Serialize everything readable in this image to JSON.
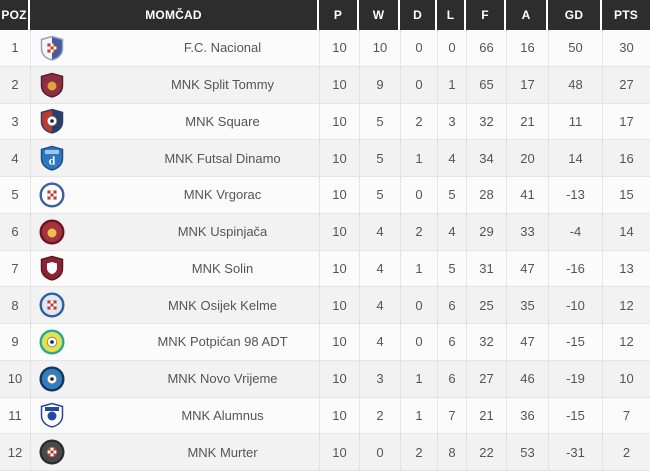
{
  "app": {
    "title": "Futsal league standings table"
  },
  "colors": {
    "header_bg": "#2d2d2d",
    "header_text": "#ffffff",
    "row_odd_bg": "#fbfbfb",
    "row_even_bg": "#f2f2f2",
    "row_border": "#e5e5e5",
    "column_divider": "#d4d4d4",
    "body_text": "#555555"
  },
  "table": {
    "columns": [
      {
        "key": "pos",
        "label": "POZ"
      },
      {
        "key": "team",
        "label": "MOMČAD"
      },
      {
        "key": "p",
        "label": "P"
      },
      {
        "key": "w",
        "label": "W"
      },
      {
        "key": "d",
        "label": "D"
      },
      {
        "key": "l",
        "label": "L"
      },
      {
        "key": "f",
        "label": "F"
      },
      {
        "key": "a",
        "label": "A"
      },
      {
        "key": "gd",
        "label": "GD"
      },
      {
        "key": "pts",
        "label": "PTS"
      }
    ],
    "rows": [
      {
        "pos": 1,
        "team": "F.C. Nacional",
        "p": 10,
        "w": 10,
        "d": 0,
        "l": 0,
        "f": 66,
        "a": 16,
        "gd": 50,
        "pts": 30,
        "logo": {
          "icon": "fc-nacional-crest",
          "shape": "shield",
          "bg": "#f4f6fa",
          "border": "#93a2b8",
          "secondary": "#3b5ea6",
          "motif": {
            "type": "checker",
            "color": "#c0392b"
          }
        }
      },
      {
        "pos": 2,
        "team": "MNK Split Tommy",
        "p": 10,
        "w": 9,
        "d": 0,
        "l": 1,
        "f": 65,
        "a": 17,
        "gd": 48,
        "pts": 27,
        "logo": {
          "icon": "split-tommy-crest",
          "shape": "shield",
          "bg": "#8c2f3f",
          "border": "#5a1f2c",
          "motif": {
            "type": "dot",
            "color": "#e0a23c"
          }
        }
      },
      {
        "pos": 3,
        "team": "MNK Square",
        "p": 10,
        "w": 5,
        "d": 2,
        "l": 3,
        "f": 32,
        "a": 21,
        "gd": 11,
        "pts": 17,
        "logo": {
          "icon": "square-crest",
          "shape": "shield",
          "bg": "#c0392b",
          "border": "#2c3e6b",
          "secondary": "#2c3e6b",
          "motif": {
            "type": "ball"
          }
        }
      },
      {
        "pos": 4,
        "team": "MNK Futsal Dinamo",
        "p": 10,
        "w": 5,
        "d": 1,
        "l": 4,
        "f": 34,
        "a": 20,
        "gd": 14,
        "pts": 16,
        "logo": {
          "icon": "futsal-dinamo-crest",
          "shape": "shield",
          "bg": "#2e77c0",
          "border": "#1d4f86",
          "band": "#9cc6ef",
          "motif": {
            "type": "letter",
            "color": "#ffffff",
            "text": "d"
          }
        }
      },
      {
        "pos": 5,
        "team": "MNK Vrgorac",
        "p": 10,
        "w": 5,
        "d": 0,
        "l": 5,
        "f": 28,
        "a": 41,
        "gd": -13,
        "pts": 15,
        "logo": {
          "icon": "vrgorac-crest",
          "shape": "circle",
          "bg": "#ffffff",
          "border": "#3b5ea6",
          "motif": {
            "type": "checker",
            "color": "#c0392b"
          }
        }
      },
      {
        "pos": 6,
        "team": "MNK Uspinjača",
        "p": 10,
        "w": 4,
        "d": 2,
        "l": 4,
        "f": 29,
        "a": 33,
        "gd": -4,
        "pts": 14,
        "logo": {
          "icon": "uspinjaca-crest",
          "shape": "circle",
          "bg": "#a8333f",
          "border": "#6b1420",
          "motif": {
            "type": "dot",
            "color": "#e8c24a"
          }
        }
      },
      {
        "pos": 7,
        "team": "MNK Solin",
        "p": 10,
        "w": 4,
        "d": 1,
        "l": 5,
        "f": 31,
        "a": 47,
        "gd": -16,
        "pts": 13,
        "logo": {
          "icon": "solin-crest",
          "shape": "shield",
          "bg": "#8a2432",
          "border": "#5f1622",
          "motif": {
            "type": "innershield",
            "color": "#ffffff"
          }
        }
      },
      {
        "pos": 8,
        "team": "MNK Osijek Kelme",
        "p": 10,
        "w": 4,
        "d": 0,
        "l": 6,
        "f": 25,
        "a": 35,
        "gd": -10,
        "pts": 12,
        "logo": {
          "icon": "osijek-kelme-crest",
          "shape": "circle",
          "bg": "#dfe9f5",
          "border": "#2e5fa3",
          "motif": {
            "type": "checker",
            "color": "#c0392b"
          }
        }
      },
      {
        "pos": 9,
        "team": "MNK Potpićan 98 ADT",
        "p": 10,
        "w": 4,
        "d": 0,
        "l": 6,
        "f": 32,
        "a": 47,
        "gd": -15,
        "pts": 12,
        "logo": {
          "icon": "potpican-crest",
          "shape": "circle",
          "bg": "#e8e04a",
          "border": "#2aa79b",
          "motif": {
            "type": "ball"
          }
        }
      },
      {
        "pos": 10,
        "team": "MNK Novo Vrijeme",
        "p": 10,
        "w": 3,
        "d": 1,
        "l": 6,
        "f": 27,
        "a": 46,
        "gd": -19,
        "pts": 10,
        "logo": {
          "icon": "novo-vrijeme-crest",
          "shape": "circle",
          "bg": "#2f7fc1",
          "border": "#17355e",
          "motif": {
            "type": "ball"
          }
        }
      },
      {
        "pos": 11,
        "team": "MNK Alumnus",
        "p": 10,
        "w": 2,
        "d": 1,
        "l": 7,
        "f": 21,
        "a": 36,
        "gd": -15,
        "pts": 7,
        "logo": {
          "icon": "alumnus-crest",
          "shape": "shield",
          "bg": "#ffffff",
          "border": "#2447a0",
          "band": "#2447a0",
          "motif": {
            "type": "dot",
            "color": "#2447a0"
          }
        }
      },
      {
        "pos": 12,
        "team": "MNK Murter",
        "p": 10,
        "w": 0,
        "d": 2,
        "l": 8,
        "f": 22,
        "a": 53,
        "gd": -31,
        "pts": 2,
        "logo": {
          "icon": "murter-crest",
          "shape": "circle",
          "bg": "#4a4a4a",
          "border": "#2d2d2d",
          "motif": {
            "type": "checker",
            "color": "#c0392b"
          }
        }
      }
    ]
  }
}
